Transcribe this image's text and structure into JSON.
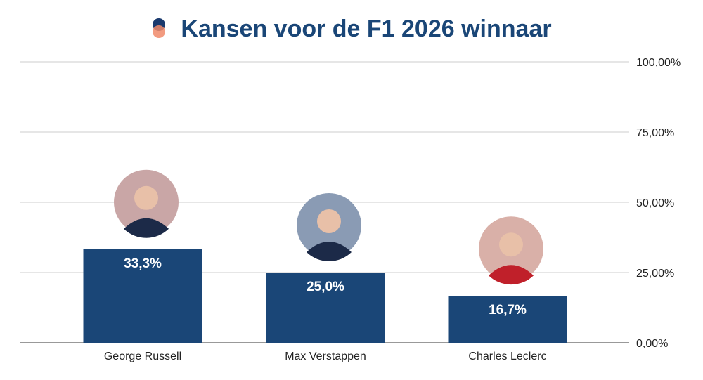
{
  "chart_data": {
    "type": "bar",
    "title": "Kansen voor de F1 2026 winnaar",
    "categories": [
      "George Russell",
      "Max Verstappen",
      "Charles Leclerc"
    ],
    "values": [
      33.3,
      25.0,
      16.7
    ],
    "data_labels": [
      "33,3%",
      "25,0%",
      "16,7%"
    ],
    "ylim": [
      0,
      100
    ],
    "yticks": [
      0,
      25,
      50,
      75,
      100
    ],
    "ytick_labels": [
      "0,00%",
      "25,00%",
      "50,00%",
      "75,00%",
      "100,00%"
    ],
    "y_axis_side": "right",
    "grid": true,
    "bar_color": "#1a4677",
    "label_color": "#ffffff",
    "avatar_colors": [
      "#c9a6a6",
      "#8a9bb4",
      "#d9b0a8"
    ]
  }
}
